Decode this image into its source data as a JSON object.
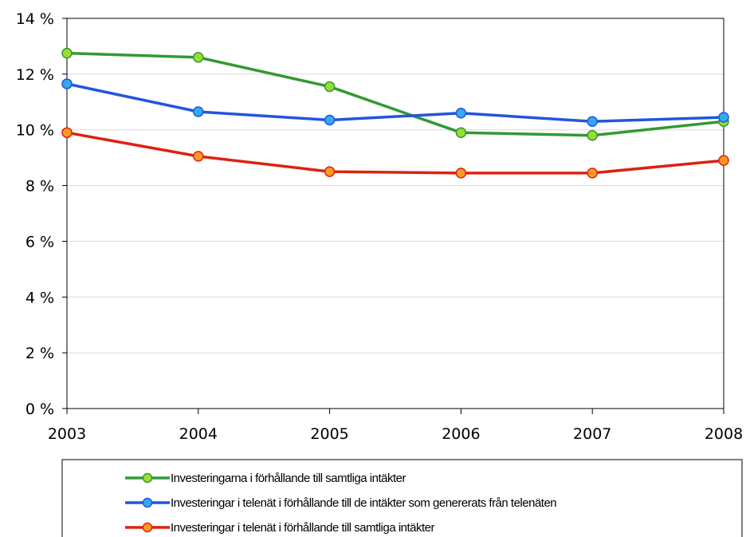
{
  "chart_data": {
    "type": "line",
    "title": "",
    "xlabel": "",
    "ylabel": "",
    "categories": [
      "2003",
      "2004",
      "2005",
      "2006",
      "2007",
      "2008"
    ],
    "ylim": [
      0,
      14
    ],
    "yticks": [
      0,
      2,
      4,
      6,
      8,
      10,
      12,
      14
    ],
    "ytick_labels": [
      "0 %",
      "2 %",
      "4 %",
      "6 %",
      "8 %",
      "10 %",
      "12 %",
      "14 %"
    ],
    "grid": true,
    "legend_position": "bottom",
    "series": [
      {
        "name": "Investeringarna i förhållande till samtliga intäkter",
        "values": [
          12.75,
          12.6,
          11.55,
          9.9,
          9.8,
          10.3
        ],
        "color": "#339933",
        "marker_color": "#99dd33"
      },
      {
        "name": "Investeringar i telenät i förhållande till de intäkter som genererats från telenäten",
        "values": [
          11.65,
          10.65,
          10.35,
          10.6,
          10.3,
          10.45
        ],
        "color": "#2255dd",
        "marker_color": "#33aaee"
      },
      {
        "name": "Investeringar i telenät i förhållande till samtliga intäkter",
        "values": [
          9.9,
          9.05,
          8.5,
          8.45,
          8.45,
          8.9
        ],
        "color": "#dd2211",
        "marker_color": "#ff9922"
      }
    ]
  }
}
